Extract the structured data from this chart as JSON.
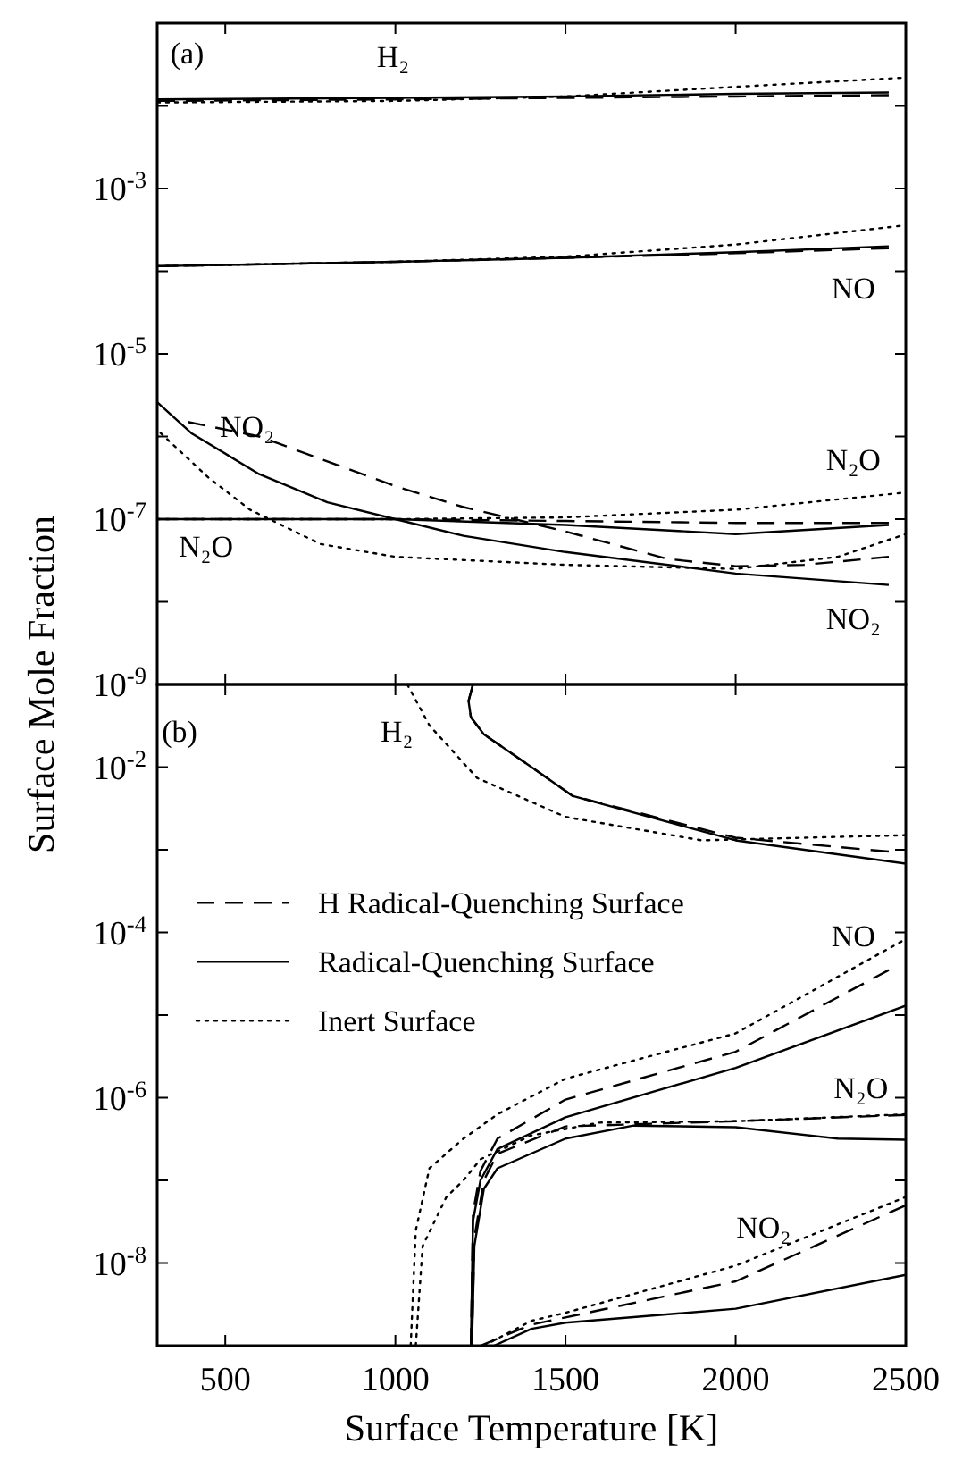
{
  "chart_data": [
    {
      "type": "line",
      "ylabel": "Surface Mole Fraction",
      "log": "y",
      "grid": false,
      "tick_labels": "y",
      "xlim": [
        300,
        2500
      ],
      "xticks": [
        {
          "value": 500,
          "label": null
        },
        {
          "value": 1000,
          "label": null
        },
        {
          "value": 1500,
          "label": null
        },
        {
          "value": 2000,
          "label": null
        },
        {
          "value": 2500,
          "label": null
        }
      ],
      "ylim": [
        1e-09,
        0.1
      ],
      "yticks": [
        {
          "value": 1e-09,
          "label": "10$^{-9}$"
        },
        {
          "value": 1e-08,
          "label": null
        },
        {
          "value": 1e-07,
          "label": "10$^{-7}$"
        },
        {
          "value": 1e-06,
          "label": null
        },
        {
          "value": 1e-05,
          "label": "10$^{-5}$"
        },
        {
          "value": 0.0001,
          "label": null
        },
        {
          "value": 0.001,
          "label": "10$^{-3}$"
        },
        {
          "value": 0.01,
          "label": null
        },
        {
          "value": 0.1,
          "label": null
        }
      ],
      "legend": false,
      "annotations": [
        "(a)",
        "H₂",
        "NO",
        "NO₂",
        "N₂O",
        "N₂O",
        "NO₂"
      ],
      "series": [
        {
          "color": "#000000",
          "line_style": "solid",
          "x": [
            300,
            1000,
            1500,
            2000,
            2450
          ],
          "values": [
            0.012,
            0.0125,
            0.013,
            0.014,
            0.0145
          ]
        },
        {
          "color": "#000000",
          "line_style": "dashed",
          "x": [
            300,
            1000,
            1500,
            2000,
            2450
          ],
          "values": [
            0.0115,
            0.012,
            0.0125,
            0.013,
            0.0135
          ]
        },
        {
          "color": "#000000",
          "line_style": "dotted",
          "x": [
            300,
            1000,
            1500,
            2000,
            2500
          ],
          "values": [
            0.011,
            0.0115,
            0.013,
            0.017,
            0.022
          ]
        },
        {
          "color": "#000000",
          "line_style": "solid",
          "x": [
            300,
            1000,
            1500,
            2000,
            2450
          ],
          "values": [
            0.000115,
            0.00013,
            0.000145,
            0.00017,
            0.0002
          ]
        },
        {
          "color": "#000000",
          "line_style": "dashed",
          "x": [
            300,
            1000,
            1500,
            2000,
            2450
          ],
          "values": [
            0.000115,
            0.00013,
            0.000145,
            0.000165,
            0.00019
          ]
        },
        {
          "color": "#000000",
          "line_style": "dotted",
          "x": [
            300,
            1000,
            1500,
            2000,
            2500
          ],
          "values": [
            0.000115,
            0.00013,
            0.00015,
            0.00021,
            0.00036
          ]
        },
        {
          "color": "#000000",
          "line_style": "solid",
          "x": [
            300,
            400,
            600,
            800,
            1000,
            1200,
            1500,
            2000,
            2450
          ],
          "values": [
            2.6e-06,
            1.1e-06,
            3.5e-07,
            1.6e-07,
            1e-07,
            6.3e-08,
            4e-08,
            2.2e-08,
            1.6e-08
          ]
        },
        {
          "color": "#000000",
          "line_style": "dashed",
          "x": [
            390,
            600,
            800,
            1000,
            1200,
            1500,
            1800,
            2000,
            2200,
            2450
          ],
          "values": [
            1.5e-06,
            1e-06,
            5e-07,
            2.5e-07,
            1.4e-07,
            7.1e-08,
            3.3e-08,
            2.7e-08,
            2.8e-08,
            3.5e-08
          ]
        },
        {
          "color": "#000000",
          "line_style": "dotted",
          "x": [
            310,
            450,
            573,
            780,
            1000,
            1500,
            2000,
            2300,
            2500
          ],
          "values": [
            1.1e-06,
            3.2e-07,
            1.3e-07,
            5e-08,
            3.5e-08,
            2.8e-08,
            2.5e-08,
            3.5e-08,
            6.6e-08
          ]
        },
        {
          "color": "#000000",
          "line_style": "solid",
          "x": [
            300,
            1000,
            1500,
            2000,
            2450
          ],
          "values": [
            1e-07,
            1e-07,
            8.5e-08,
            6.6e-08,
            8.5e-08
          ]
        },
        {
          "color": "#000000",
          "line_style": "dashed",
          "x": [
            300,
            1000,
            1500,
            2000,
            2450
          ],
          "values": [
            1e-07,
            1e-07,
            9.5e-08,
            9e-08,
            9e-08
          ]
        },
        {
          "color": "#000000",
          "line_style": "dotted",
          "x": [
            300,
            1000,
            1500,
            2000,
            2500
          ],
          "values": [
            1e-07,
            1e-07,
            1.05e-07,
            1.3e-07,
            2.1e-07
          ]
        }
      ]
    },
    {
      "type": "line",
      "xlabel": "Surface Temperature [K]",
      "log": "y",
      "grid": false,
      "xlim": [
        300,
        2500
      ],
      "xticks": [
        500,
        1000,
        1500,
        2000,
        2500
      ],
      "ylim": [
        1e-09,
        0.1
      ],
      "yticks": [
        {
          "value": 1e-09,
          "label": null
        },
        {
          "value": 1e-08,
          "label": "10$^{-8}$"
        },
        {
          "value": 1e-07,
          "label": null
        },
        {
          "value": 1e-06,
          "label": "10$^{-6}$"
        },
        {
          "value": 1e-05,
          "label": null
        },
        {
          "value": 0.0001,
          "label": "10$^{-4}$"
        },
        {
          "value": 0.001,
          "label": null
        },
        {
          "value": 0.01,
          "label": "10$^{-2}$"
        },
        {
          "value": 0.1,
          "label": null
        }
      ],
      "legend": "left",
      "annotations": [
        "(b)",
        "H₂",
        "NO",
        "N₂O",
        "NO₂"
      ],
      "series": [
        {
          "name": "H Radical-Quenching Surface",
          "color": "#000000",
          "line_style": "dashed",
          "x": [
            1228,
            1215,
            1222,
            1260,
            1400,
            1520,
            2000,
            2450
          ],
          "values": [
            0.1,
            0.063,
            0.04,
            0.025,
            0.01,
            0.0045,
            0.0014,
            0.00095
          ]
        },
        {
          "name": "Radical-Quenching Surface",
          "color": "#000000",
          "line_style": "solid",
          "x": [
            1228,
            1215,
            1222,
            1260,
            1400,
            1520,
            2000,
            2500
          ],
          "values": [
            0.1,
            0.063,
            0.04,
            0.025,
            0.01,
            0.0045,
            0.0013,
            0.00068
          ]
        },
        {
          "name": "Inert Surface",
          "color": "#000000",
          "line_style": "dotted",
          "x": [
            1035,
            1100,
            1240,
            1500,
            1900,
            2200,
            2500
          ],
          "values": [
            0.1,
            0.032,
            0.0074,
            0.0025,
            0.0013,
            0.0014,
            0.0015
          ]
        },
        {
          "color": "#000000",
          "line_style": "solid",
          "x": [
            1222,
            1228,
            1250,
            1300,
            1500,
            2000,
            2500
          ],
          "values": [
            1e-09,
            3.2e-08,
            1e-07,
            2.4e-07,
            5.8e-07,
            2.3e-06,
            1.3e-05
          ]
        },
        {
          "color": "#000000",
          "line_style": "dashed",
          "x": [
            1222,
            1228,
            1250,
            1300,
            1500,
            2000,
            2450
          ],
          "values": [
            1e-09,
            4e-08,
            1.3e-07,
            3.2e-07,
            9.5e-07,
            3.6e-06,
            3.5e-05
          ]
        },
        {
          "color": "#000000",
          "line_style": "dotted",
          "x": [
            1045,
            1060,
            1100,
            1200,
            1300,
            1500,
            2000,
            2500
          ],
          "values": [
            1e-09,
            2.5e-08,
            1.4e-07,
            3.2e-07,
            6.3e-07,
            1.7e-06,
            6e-06,
            8.3e-05
          ]
        },
        {
          "color": "#000000",
          "line_style": "solid",
          "x": [
            1225,
            1232,
            1260,
            1300,
            1500,
            1700,
            2000,
            2300,
            2500
          ],
          "values": [
            1e-09,
            1.6e-08,
            7.9e-08,
            1.4e-07,
            3.2e-07,
            4.6e-07,
            4.4e-07,
            3.2e-07,
            3.1e-07
          ]
        },
        {
          "color": "#000000",
          "line_style": "dashed",
          "x": [
            1225,
            1232,
            1260,
            1300,
            1500,
            2000,
            2500
          ],
          "values": [
            1e-09,
            2e-08,
            1e-07,
            2.1e-07,
            4.5e-07,
            5.2e-07,
            6.2e-07
          ]
        },
        {
          "color": "#000000",
          "line_style": "dotted",
          "x": [
            1060,
            1080,
            1150,
            1200,
            1250,
            1400,
            1600,
            2000,
            2500
          ],
          "values": [
            1e-09,
            1.6e-08,
            6.3e-08,
            1e-07,
            1.8e-07,
            3.5e-07,
            5e-07,
            5.2e-07,
            6.3e-07
          ]
        },
        {
          "color": "#000000",
          "line_style": "solid",
          "x": [
            1290,
            1400,
            1500,
            2000,
            2500
          ],
          "values": [
            1e-09,
            1.6e-09,
            1.9e-09,
            2.8e-09,
            7.2e-09
          ]
        },
        {
          "color": "#000000",
          "line_style": "dashed",
          "x": [
            1250,
            1400,
            1500,
            2000,
            2500
          ],
          "values": [
            1e-09,
            1.8e-09,
            2.2e-09,
            6e-09,
            5e-08
          ]
        },
        {
          "color": "#000000",
          "line_style": "dotted",
          "x": [
            1260,
            1400,
            1500,
            2000,
            2500
          ],
          "values": [
            1e-09,
            2e-09,
            2.5e-09,
            9.3e-09,
            6.3e-08
          ]
        }
      ]
    }
  ]
}
